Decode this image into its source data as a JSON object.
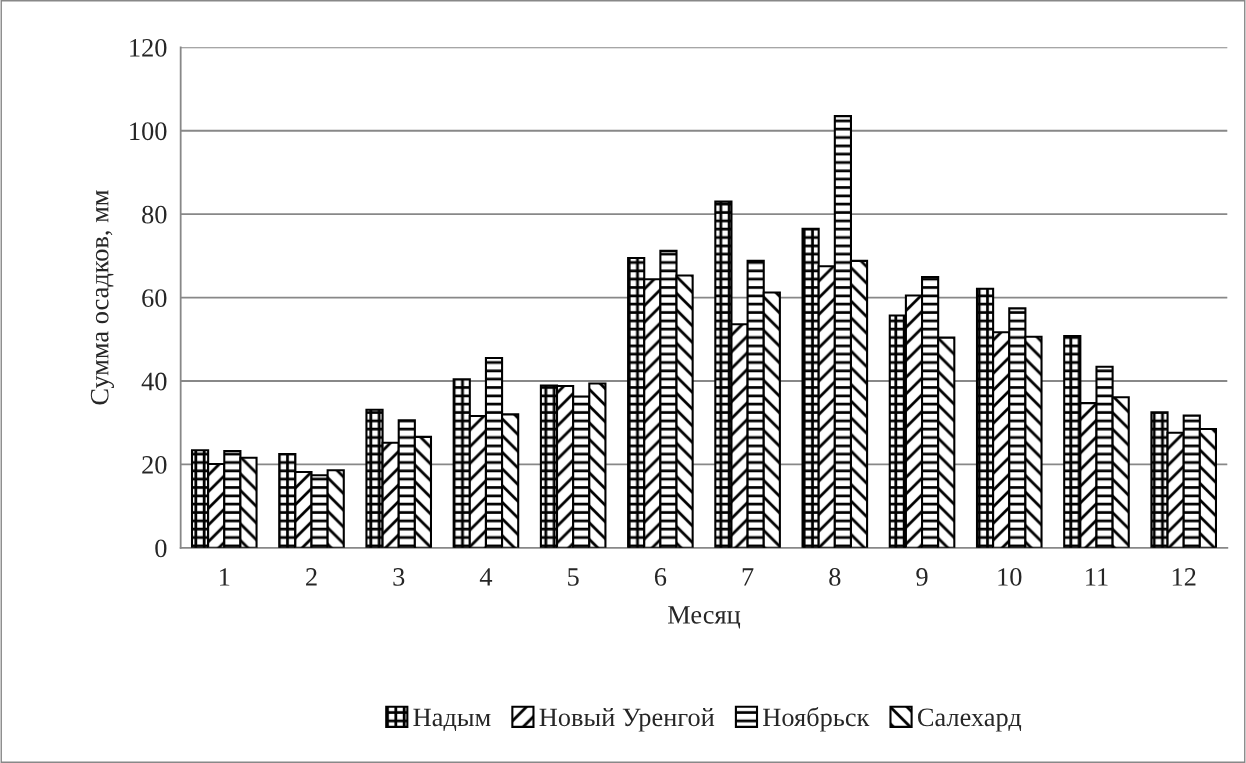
{
  "chart_data": {
    "type": "bar",
    "xlabel": "Месяц",
    "ylabel": "Сумма осадков, мм",
    "categories": [
      "1",
      "2",
      "3",
      "4",
      "5",
      "6",
      "7",
      "8",
      "9",
      "10",
      "11",
      "12"
    ],
    "series": [
      {
        "name": "Надым",
        "color": "#000000",
        "values": [
          23.4,
          22.5,
          33.1,
          40.4,
          38.9,
          69.5,
          83.0,
          76.5,
          55.7,
          62.1,
          50.8,
          32.5
        ]
      },
      {
        "name": "Новый Уренгой",
        "color": "#000000",
        "values": [
          20.1,
          18.2,
          25.2,
          31.6,
          38.8,
          64.4,
          53.6,
          67.5,
          60.5,
          51.7,
          34.7,
          27.6
        ]
      },
      {
        "name": "Ноябрьск",
        "color": "#000000",
        "values": [
          23.2,
          17.4,
          30.6,
          45.5,
          36.3,
          71.2,
          68.8,
          103.5,
          64.9,
          57.4,
          43.4,
          31.7
        ]
      },
      {
        "name": "Салехард",
        "color": "#000000",
        "values": [
          21.6,
          18.6,
          26.6,
          32.0,
          39.4,
          65.3,
          61.2,
          68.8,
          50.4,
          50.6,
          36.1,
          28.5
        ]
      }
    ],
    "ylim": [
      0,
      120
    ],
    "yticks": [
      0,
      20,
      40,
      60,
      80,
      100,
      120
    ],
    "grid": "y",
    "legend": "bottom"
  }
}
